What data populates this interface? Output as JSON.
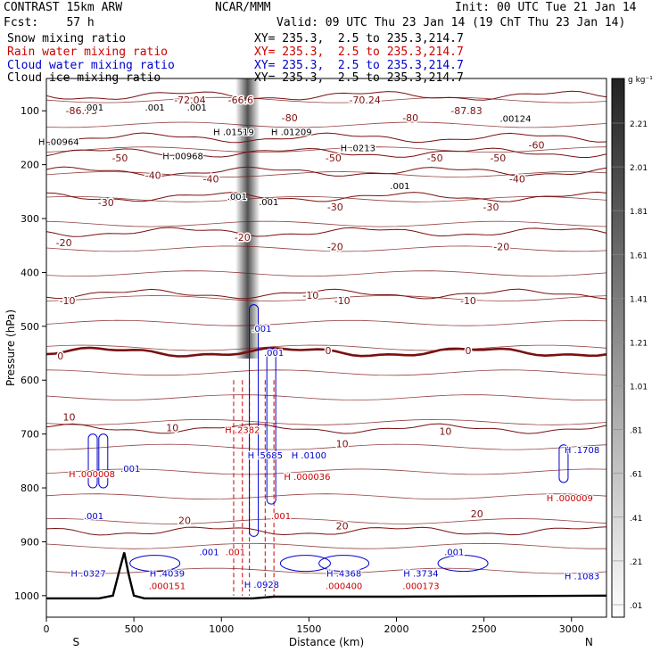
{
  "header": {
    "model": "CONTRAST 15km ARW",
    "forecast": "Fcst:    57 h",
    "center": "NCAR/MMM",
    "init": "Init: 00 UTC Tue 21 Jan 14",
    "valid": "Valid: 09 UTC Thu 23 Jan 14 (19 ChT Thu 23 Jan 14)",
    "fields": [
      {
        "name": "Snow mixing ratio",
        "xy": "XY= 235.3,  2.5 to 235.3,214.7",
        "color": "#000000"
      },
      {
        "name": "Rain water mixing ratio",
        "xy": "XY= 235.3,  2.5 to 235.3,214.7",
        "color": "#cc0000"
      },
      {
        "name": "Cloud water mixing ratio",
        "xy": "XY= 235.3,  2.5 to 235.3,214.7",
        "color": "#0000cc"
      },
      {
        "name": "Cloud ice mixing ratio",
        "xy": "XY= 235.3,  2.5 to 235.3,214.7",
        "color": "#000000"
      }
    ]
  },
  "chart_data": {
    "type": "cross-section contour",
    "xlabel": "Distance (km)",
    "ylabel": "Pressure (hPa)",
    "xlim": [
      0,
      3200
    ],
    "ylim": [
      1040,
      40
    ],
    "x_ticks": [
      0,
      500,
      1000,
      1500,
      2000,
      2500,
      3000
    ],
    "y_ticks": [
      100,
      200,
      300,
      400,
      500,
      600,
      700,
      800,
      900,
      1000
    ],
    "end_labels": {
      "left": "S",
      "right": "N"
    },
    "colorbar": {
      "unit": "g kg⁻¹",
      "ticks": [
        "2.21",
        "2.01",
        "1.81",
        "1.61",
        "1.41",
        "1.21",
        "1.01",
        ".81",
        ".61",
        ".41",
        ".21",
        ".01"
      ]
    },
    "temperature_isotherms": [
      {
        "value": -70,
        "p": 72
      },
      {
        "value": -60,
        "p": 150
      },
      {
        "value": -50,
        "p": 178
      },
      {
        "value": -40,
        "p": 213
      },
      {
        "value": -30,
        "p": 260
      },
      {
        "value": -20,
        "p": 325
      },
      {
        "value": -10,
        "p": 440
      },
      {
        "value": 0,
        "p": 548
      },
      {
        "value": 10,
        "p": 690
      },
      {
        "value": 20,
        "p": 880
      }
    ],
    "temperature_labels": [
      {
        "text": "-72.04",
        "x": 820,
        "p": 80
      },
      {
        "text": "-66.6",
        "x": 1110,
        "p": 80
      },
      {
        "text": "-70.24",
        "x": 1820,
        "p": 80
      },
      {
        "text": "-86.73",
        "x": 200,
        "p": 100
      },
      {
        "text": "-87.83",
        "x": 2400,
        "p": 100
      },
      {
        "text": "-80",
        "x": 1390,
        "p": 113
      },
      {
        "text": "-80",
        "x": 2080,
        "p": 113
      },
      {
        "text": "-60",
        "x": 2800,
        "p": 163
      },
      {
        "text": "-50",
        "x": 420,
        "p": 187
      },
      {
        "text": "-50",
        "x": 1640,
        "p": 187
      },
      {
        "text": "-50",
        "x": 2220,
        "p": 187
      },
      {
        "text": "-50",
        "x": 2580,
        "p": 187
      },
      {
        "text": "-40",
        "x": 610,
        "p": 220
      },
      {
        "text": "-40",
        "x": 940,
        "p": 226
      },
      {
        "text": "-40",
        "x": 2690,
        "p": 226
      },
      {
        "text": "-30",
        "x": 340,
        "p": 270
      },
      {
        "text": "-30",
        "x": 1650,
        "p": 278
      },
      {
        "text": "-30",
        "x": 2540,
        "p": 278
      },
      {
        "text": "-20",
        "x": 100,
        "p": 345
      },
      {
        "text": "-20",
        "x": 1120,
        "p": 335
      },
      {
        "text": "-20",
        "x": 1650,
        "p": 352
      },
      {
        "text": "-20",
        "x": 2600,
        "p": 352
      },
      {
        "text": "-10",
        "x": 120,
        "p": 452
      },
      {
        "text": "-10",
        "x": 1510,
        "p": 442
      },
      {
        "text": "-10",
        "x": 1690,
        "p": 452
      },
      {
        "text": "-10",
        "x": 2410,
        "p": 452
      },
      {
        "text": "0",
        "x": 80,
        "p": 555
      },
      {
        "text": "0",
        "x": 1610,
        "p": 545
      },
      {
        "text": "0",
        "x": 2410,
        "p": 545
      },
      {
        "text": "10",
        "x": 130,
        "p": 668
      },
      {
        "text": "10",
        "x": 720,
        "p": 688
      },
      {
        "text": "10",
        "x": 1690,
        "p": 718
      },
      {
        "text": "10",
        "x": 2280,
        "p": 695
      },
      {
        "text": "20",
        "x": 790,
        "p": 860
      },
      {
        "text": "20",
        "x": 1690,
        "p": 870
      },
      {
        "text": "20",
        "x": 2460,
        "p": 848
      }
    ],
    "extrema": [
      {
        "mark": "H",
        "value": ".00964",
        "x": 70,
        "p": 163,
        "color": "#000000"
      },
      {
        "mark": "",
        "value": ".001",
        "x": 270,
        "p": 100,
        "color": "#000000"
      },
      {
        "mark": "",
        "value": ".001",
        "x": 620,
        "p": 100,
        "color": "#000000"
      },
      {
        "mark": "H",
        "value": ".00968",
        "x": 780,
        "p": 190,
        "color": "#000000"
      },
      {
        "mark": "",
        "value": ".001",
        "x": 860,
        "p": 100,
        "color": "#000000"
      },
      {
        "mark": "H",
        "value": ".01519",
        "x": 1070,
        "p": 145,
        "color": "#000000"
      },
      {
        "mark": "H",
        "value": ".01209",
        "x": 1400,
        "p": 145,
        "color": "#000000"
      },
      {
        "mark": "H",
        "value": ".0213",
        "x": 1780,
        "p": 175,
        "color": "#000000"
      },
      {
        "mark": "",
        "value": ".00124",
        "x": 2680,
        "p": 120,
        "color": "#000000"
      },
      {
        "mark": "",
        "value": ".001",
        "x": 1090,
        "p": 265,
        "color": "#000000"
      },
      {
        "mark": "",
        "value": ".001",
        "x": 1270,
        "p": 275,
        "color": "#000000"
      },
      {
        "mark": "",
        "value": ".001",
        "x": 2020,
        "p": 245,
        "color": "#000000"
      },
      {
        "mark": "",
        "value": ".001",
        "x": 1230,
        "p": 510,
        "color": "#0000cc"
      },
      {
        "mark": "",
        "value": ".001",
        "x": 1300,
        "p": 555,
        "color": "#0000cc"
      },
      {
        "mark": "H",
        "value": ".2382",
        "x": 1120,
        "p": 698,
        "color": "#cc0000"
      },
      {
        "mark": "H",
        "value": ".5685",
        "x": 1250,
        "p": 745,
        "color": "#0000cc"
      },
      {
        "mark": "H",
        "value": ".0100",
        "x": 1500,
        "p": 745,
        "color": "#0000cc"
      },
      {
        "mark": "H",
        "value": ".000036",
        "x": 1490,
        "p": 785,
        "color": "#cc0000"
      },
      {
        "mark": "H",
        "value": ".000008",
        "x": 260,
        "p": 780,
        "color": "#cc0000"
      },
      {
        "mark": "",
        "value": ".001",
        "x": 480,
        "p": 770,
        "color": "#0000cc"
      },
      {
        "mark": "",
        "value": ".001",
        "x": 270,
        "p": 858,
        "color": "#0000cc"
      },
      {
        "mark": "",
        "value": ".001",
        "x": 1340,
        "p": 858,
        "color": "#cc0000"
      },
      {
        "mark": "",
        "value": ".001",
        "x": 1080,
        "p": 925,
        "color": "#cc0000"
      },
      {
        "mark": "",
        "value": ".001",
        "x": 930,
        "p": 925,
        "color": "#0000cc"
      },
      {
        "mark": "",
        "value": ".001",
        "x": 2330,
        "p": 925,
        "color": "#0000cc"
      },
      {
        "mark": "H",
        "value": ".0327",
        "x": 240,
        "p": 965,
        "color": "#0000cc"
      },
      {
        "mark": "H",
        "value": ".4039",
        "x": 690,
        "p": 965,
        "color": "#0000cc"
      },
      {
        "mark": "",
        "value": ".000151",
        "x": 690,
        "p": 988,
        "color": "#cc0000"
      },
      {
        "mark": "H",
        "value": ".0928",
        "x": 1230,
        "p": 985,
        "color": "#0000cc"
      },
      {
        "mark": "H",
        "value": ".4368",
        "x": 1700,
        "p": 965,
        "color": "#0000cc"
      },
      {
        "mark": "",
        "value": ".000400",
        "x": 1700,
        "p": 988,
        "color": "#cc0000"
      },
      {
        "mark": "H",
        "value": ".3734",
        "x": 2140,
        "p": 965,
        "color": "#0000cc"
      },
      {
        "mark": "",
        "value": ".000173",
        "x": 2140,
        "p": 988,
        "color": "#cc0000"
      },
      {
        "mark": "H",
        "value": ".1083",
        "x": 3060,
        "p": 970,
        "color": "#0000cc"
      },
      {
        "mark": "H",
        "value": ".1708",
        "x": 3060,
        "p": 735,
        "color": "#0000cc"
      },
      {
        "mark": "H",
        "value": ".000009",
        "x": 2990,
        "p": 825,
        "color": "#cc0000"
      }
    ],
    "terrain_surface_p": [
      [
        0,
        1005
      ],
      [
        300,
        1005
      ],
      [
        380,
        1000
      ],
      [
        420,
        950
      ],
      [
        445,
        920
      ],
      [
        470,
        960
      ],
      [
        500,
        1000
      ],
      [
        560,
        1005
      ],
      [
        1050,
        1005
      ],
      [
        1180,
        1005
      ],
      [
        1300,
        1002
      ],
      [
        2000,
        1002
      ],
      [
        3200,
        1000
      ]
    ]
  }
}
